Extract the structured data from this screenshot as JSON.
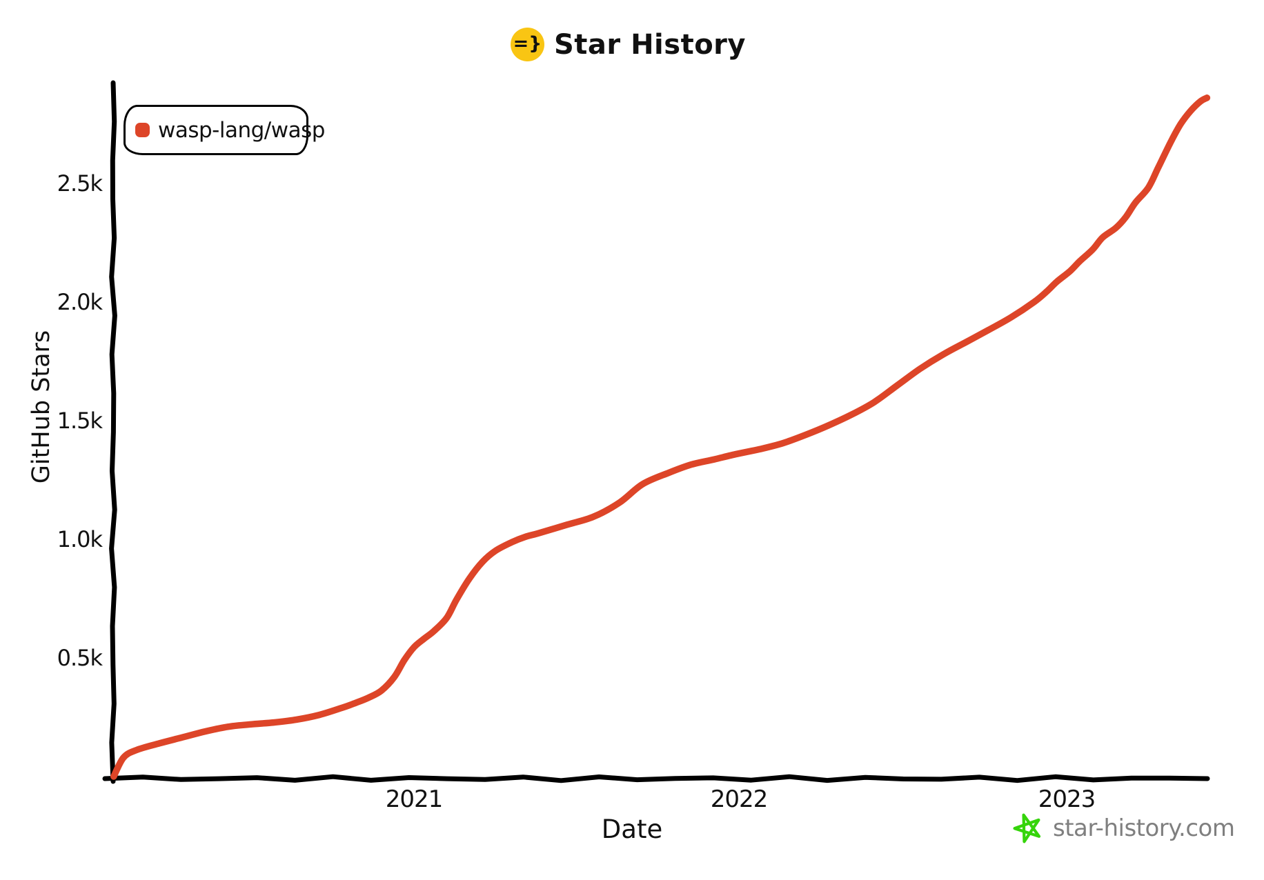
{
  "page": {
    "title": "Star History",
    "title_icon": {
      "glyph": "=}",
      "bg": "#f9c513",
      "fg": "#111111"
    }
  },
  "legend": {
    "series_label": "wasp-lang/wasp",
    "marker_color": "#dd4528"
  },
  "axes": {
    "y_label": "GitHub Stars",
    "x_label": "Date",
    "y_ticks": [
      "2.5k",
      "2.0k",
      "1.5k",
      "1.0k",
      "0.5k"
    ],
    "x_ticks": [
      "2021",
      "2022",
      "2023"
    ]
  },
  "footer": {
    "site": "star-history.com",
    "star_icon_color": "#35d40b",
    "text_color": "#7f7f7f"
  },
  "chart_data": {
    "type": "line",
    "title": "Star History",
    "xlabel": "Date",
    "ylabel": "GitHub Stars",
    "grid": false,
    "legend_position": "top-left",
    "axis_color": "#000000",
    "x_range": [
      2020.05,
      2023.47
    ],
    "y_range": [
      0,
      2900
    ],
    "x_tick_values": [
      2021,
      2022,
      2023
    ],
    "y_tick_values": [
      500,
      1000,
      1500,
      2000,
      2500
    ],
    "y_tick_labels": [
      "0.5k",
      "1.0k",
      "1.5k",
      "2.0k",
      "2.5k"
    ],
    "series": [
      {
        "name": "wasp-lang/wasp",
        "color": "#dd4528",
        "points": [
          [
            2020.08,
            0
          ],
          [
            2020.11,
            80
          ],
          [
            2020.15,
            112
          ],
          [
            2020.22,
            140
          ],
          [
            2020.29,
            165
          ],
          [
            2020.36,
            190
          ],
          [
            2020.43,
            210
          ],
          [
            2020.5,
            220
          ],
          [
            2020.57,
            228
          ],
          [
            2020.64,
            240
          ],
          [
            2020.71,
            260
          ],
          [
            2020.78,
            290
          ],
          [
            2020.82,
            310
          ],
          [
            2020.86,
            332
          ],
          [
            2020.9,
            362
          ],
          [
            2020.94,
            420
          ],
          [
            2020.97,
            490
          ],
          [
            2021.0,
            545
          ],
          [
            2021.03,
            580
          ],
          [
            2021.06,
            612
          ],
          [
            2021.1,
            668
          ],
          [
            2021.13,
            745
          ],
          [
            2021.17,
            835
          ],
          [
            2021.21,
            905
          ],
          [
            2021.25,
            952
          ],
          [
            2021.3,
            988
          ],
          [
            2021.34,
            1010
          ],
          [
            2021.38,
            1025
          ],
          [
            2021.47,
            1062
          ],
          [
            2021.55,
            1095
          ],
          [
            2021.63,
            1155
          ],
          [
            2021.7,
            1232
          ],
          [
            2021.78,
            1280
          ],
          [
            2021.85,
            1315
          ],
          [
            2021.92,
            1337
          ],
          [
            2021.99,
            1360
          ],
          [
            2022.06,
            1380
          ],
          [
            2022.13,
            1405
          ],
          [
            2022.2,
            1440
          ],
          [
            2022.27,
            1480
          ],
          [
            2022.34,
            1525
          ],
          [
            2022.41,
            1578
          ],
          [
            2022.48,
            1648
          ],
          [
            2022.55,
            1718
          ],
          [
            2022.62,
            1778
          ],
          [
            2022.69,
            1830
          ],
          [
            2022.76,
            1882
          ],
          [
            2022.83,
            1936
          ],
          [
            2022.9,
            2000
          ],
          [
            2022.94,
            2046
          ],
          [
            2022.97,
            2086
          ],
          [
            2023.01,
            2130
          ],
          [
            2023.04,
            2172
          ],
          [
            2023.08,
            2222
          ],
          [
            2023.11,
            2272
          ],
          [
            2023.15,
            2312
          ],
          [
            2023.18,
            2356
          ],
          [
            2023.21,
            2418
          ],
          [
            2023.25,
            2482
          ],
          [
            2023.28,
            2565
          ],
          [
            2023.32,
            2678
          ],
          [
            2023.35,
            2752
          ],
          [
            2023.38,
            2806
          ],
          [
            2023.41,
            2846
          ],
          [
            2023.43,
            2861
          ]
        ]
      }
    ]
  }
}
